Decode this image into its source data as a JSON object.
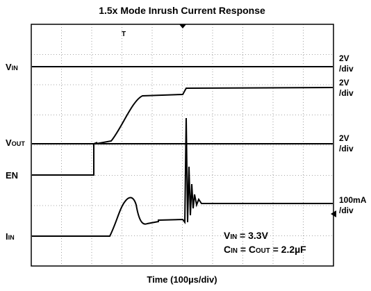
{
  "title": "1.5x Mode Inrush Current Response",
  "x_label": "Time (100µs/div)",
  "channels": [
    {
      "label": [
        "V",
        "IN"
      ],
      "scale": [
        "2V",
        "/div"
      ]
    },
    {
      "label": [
        "V",
        "OUT"
      ],
      "scale": [
        "2V",
        "/div"
      ]
    },
    {
      "label": [
        "EN"
      ],
      "scale": [
        "2V",
        "/div"
      ]
    },
    {
      "label": [
        "I",
        "IN"
      ],
      "scale": [
        "100mA",
        "/div"
      ]
    }
  ],
  "trigger_marker": "T",
  "annotations": [
    [
      "V",
      "IN",
      " = 3.3V"
    ],
    [
      "C",
      "IN",
      " = C",
      "OUT",
      " = 2.2µF"
    ]
  ]
}
